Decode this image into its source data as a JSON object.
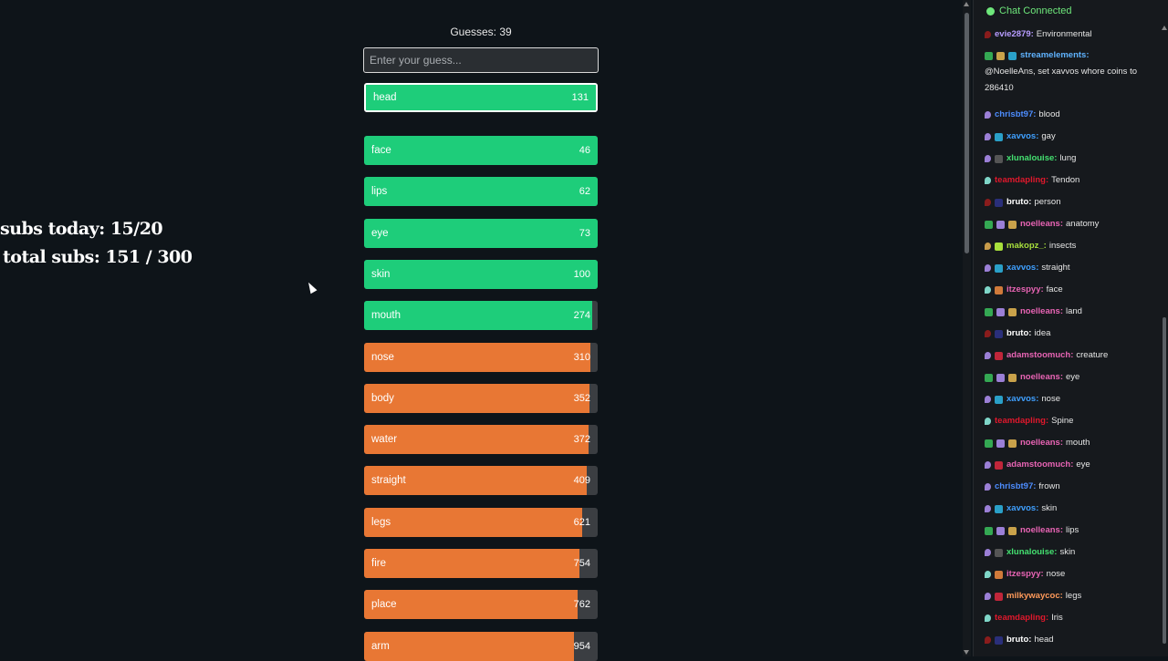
{
  "overlay": {
    "subs_today": "subs today: 15/20",
    "total_subs": "total subs: 151 / 300"
  },
  "game": {
    "guesses_label": "Guesses: 39",
    "input_placeholder": "Enter your guess...",
    "input_value": "",
    "latest": {
      "word": "head",
      "rank": "131",
      "fill": 1.0,
      "color": "#1ecd7a"
    },
    "guesses": [
      {
        "word": "face",
        "rank": "46",
        "fill": 1.0,
        "color": "#1ecd7a"
      },
      {
        "word": "lips",
        "rank": "62",
        "fill": 1.0,
        "color": "#1ecd7a"
      },
      {
        "word": "eye",
        "rank": "73",
        "fill": 1.0,
        "color": "#1ecd7a"
      },
      {
        "word": "skin",
        "rank": "100",
        "fill": 1.0,
        "color": "#1ecd7a"
      },
      {
        "word": "mouth",
        "rank": "274",
        "fill": 0.975,
        "color": "#1ecd7a"
      },
      {
        "word": "nose",
        "rank": "310",
        "fill": 0.97,
        "color": "#e87734"
      },
      {
        "word": "body",
        "rank": "352",
        "fill": 0.965,
        "color": "#e87734"
      },
      {
        "word": "water",
        "rank": "372",
        "fill": 0.96,
        "color": "#e87734"
      },
      {
        "word": "straight",
        "rank": "409",
        "fill": 0.955,
        "color": "#e87734"
      },
      {
        "word": "legs",
        "rank": "621",
        "fill": 0.935,
        "color": "#e87734"
      },
      {
        "word": "fire",
        "rank": "754",
        "fill": 0.92,
        "color": "#e87734"
      },
      {
        "word": "place",
        "rank": "762",
        "fill": 0.915,
        "color": "#e87734"
      },
      {
        "word": "arm",
        "rank": "954",
        "fill": 0.9,
        "color": "#e87734"
      }
    ]
  },
  "chat": {
    "status": "Chat Connected",
    "messages": [
      {
        "user": "evie2879:",
        "text": "Environmental",
        "color": "#b79cff",
        "badges": [
          "#8a1c1c"
        ]
      },
      {
        "user": "streamelements:",
        "text": "@NoelleAns, set xavvos whore coins to 286410",
        "color": "#5fb3ff",
        "badges": [
          "#34a853",
          "#c9a24a",
          "#2aa0c8"
        ],
        "tall": true
      },
      {
        "user": "chrisbt97:",
        "text": "blood",
        "color": "#4d8dff",
        "badges": [
          "#9b7fd6"
        ]
      },
      {
        "user": "xavvos:",
        "text": "gay",
        "color": "#3fa0ff",
        "badges": [
          "#9b7fd6",
          "#2aa0c8"
        ]
      },
      {
        "user": "xlunalouise:",
        "text": "lung",
        "color": "#44e070",
        "badges": [
          "#9b7fd6",
          "#555555"
        ]
      },
      {
        "user": "teamdapling:",
        "text": "Tendon",
        "color": "#e0182c",
        "badges": [
          "#7fd6c8"
        ]
      },
      {
        "user": "bruto:",
        "text": "person",
        "color": "#ffffff",
        "badges": [
          "#8a1c1c",
          "#2a2f7a"
        ]
      },
      {
        "user": "noelleans:",
        "text": "anatomy",
        "color": "#e864b4",
        "badges": [
          "#34a853",
          "#9b7fd6",
          "#c9a24a"
        ]
      },
      {
        "user": "makopz_:",
        "text": "insects",
        "color": "#a8e03c",
        "badges": [
          "#c89b4a",
          "#a8e03c"
        ]
      },
      {
        "user": "xavvos:",
        "text": "straight",
        "color": "#3fa0ff",
        "badges": [
          "#9b7fd6",
          "#2aa0c8"
        ]
      },
      {
        "user": "itzespyy:",
        "text": "face",
        "color": "#e864b4",
        "badges": [
          "#7fd6c8",
          "#d07a3a"
        ]
      },
      {
        "user": "noelleans:",
        "text": "land",
        "color": "#e864b4",
        "badges": [
          "#34a853",
          "#9b7fd6",
          "#c9a24a"
        ]
      },
      {
        "user": "bruto:",
        "text": "idea",
        "color": "#ffffff",
        "badges": [
          "#8a1c1c",
          "#2a2f7a"
        ]
      },
      {
        "user": "adamstoomuch:",
        "text": "creature",
        "color": "#e864b4",
        "badges": [
          "#9b7fd6",
          "#c0263a"
        ]
      },
      {
        "user": "noelleans:",
        "text": "eye",
        "color": "#e864b4",
        "badges": [
          "#34a853",
          "#9b7fd6",
          "#c9a24a"
        ]
      },
      {
        "user": "xavvos:",
        "text": "nose",
        "color": "#3fa0ff",
        "badges": [
          "#9b7fd6",
          "#2aa0c8"
        ]
      },
      {
        "user": "teamdapling:",
        "text": "Spine",
        "color": "#e0182c",
        "badges": [
          "#7fd6c8"
        ]
      },
      {
        "user": "noelleans:",
        "text": "mouth",
        "color": "#e864b4",
        "badges": [
          "#34a853",
          "#9b7fd6",
          "#c9a24a"
        ]
      },
      {
        "user": "adamstoomuch:",
        "text": "eye",
        "color": "#e864b4",
        "badges": [
          "#9b7fd6",
          "#c0263a"
        ]
      },
      {
        "user": "chrisbt97:",
        "text": "frown",
        "color": "#4d8dff",
        "badges": [
          "#9b7fd6"
        ]
      },
      {
        "user": "xavvos:",
        "text": "skin",
        "color": "#3fa0ff",
        "badges": [
          "#9b7fd6",
          "#2aa0c8"
        ]
      },
      {
        "user": "noelleans:",
        "text": "lips",
        "color": "#e864b4",
        "badges": [
          "#34a853",
          "#9b7fd6",
          "#c9a24a"
        ]
      },
      {
        "user": "xlunalouise:",
        "text": "skin",
        "color": "#44e070",
        "badges": [
          "#9b7fd6",
          "#555555"
        ]
      },
      {
        "user": "itzespyy:",
        "text": "nose",
        "color": "#e864b4",
        "badges": [
          "#7fd6c8",
          "#d07a3a"
        ]
      },
      {
        "user": "milkywaycoc:",
        "text": "legs",
        "color": "#ff9a5a",
        "badges": [
          "#9b7fd6",
          "#c0263a"
        ]
      },
      {
        "user": "teamdapling:",
        "text": "Iris",
        "color": "#e0182c",
        "badges": [
          "#7fd6c8"
        ]
      },
      {
        "user": "bruto:",
        "text": "head",
        "color": "#ffffff",
        "badges": [
          "#8a1c1c",
          "#2a2f7a"
        ]
      }
    ]
  }
}
